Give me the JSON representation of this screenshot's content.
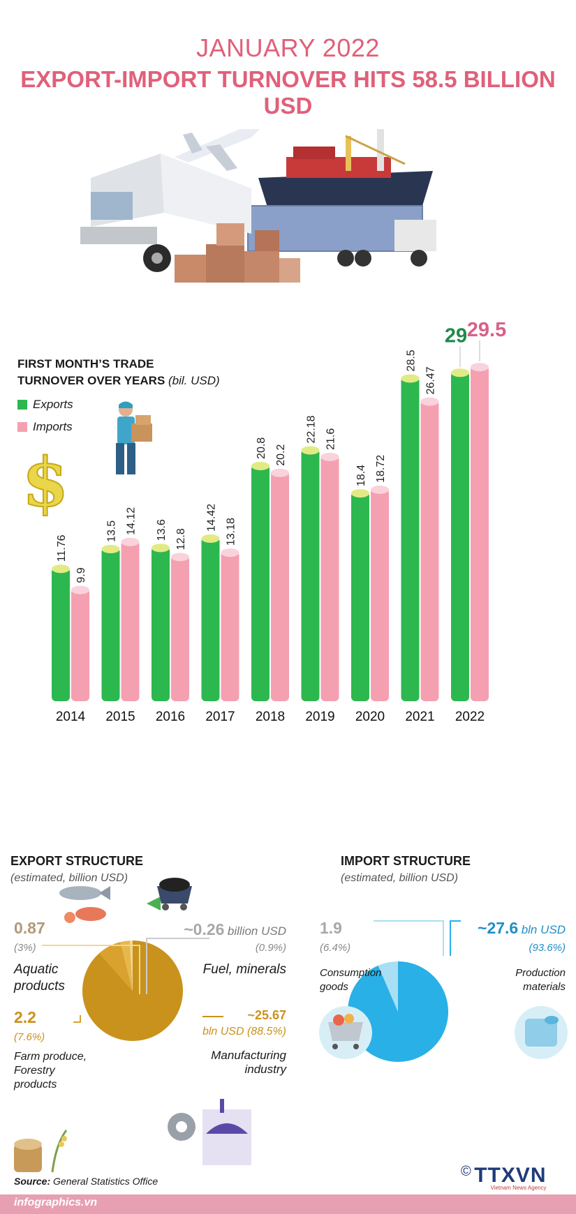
{
  "header": {
    "title_line1": "JANUARY 2022",
    "title_line2": "EXPORT-IMPORT TURNOVER HITS 58.5 BILLION USD"
  },
  "chart_section": {
    "heading_line1": "FIRST MONTH’S TRADE",
    "heading_line2": "TURNOVER OVER YEARS",
    "unit": "(bil. USD)"
  },
  "colors": {
    "exports": "#2cb84f",
    "imports": "#f4a0b1",
    "accent": "#e0607a",
    "export_pie": "#c9921c",
    "import_pie": "#29b0e6"
  },
  "chart_data": [
    {
      "type": "bar",
      "categories": [
        "2014",
        "2015",
        "2016",
        "2017",
        "2018",
        "2019",
        "2020",
        "2021",
        "2022"
      ],
      "series": [
        {
          "name": "Exports",
          "values": [
            11.76,
            13.5,
            13.6,
            14.42,
            20.8,
            22.18,
            18.4,
            28.5,
            29
          ]
        },
        {
          "name": "Imports",
          "values": [
            9.9,
            14.12,
            12.8,
            13.18,
            20.2,
            21.6,
            18.72,
            26.47,
            29.5
          ]
        }
      ],
      "value_labels": {
        "Exports": [
          "11.76",
          "13.5",
          "13.6",
          "14.42",
          "20.8",
          "22.18",
          "18.4",
          "28.5",
          "29"
        ],
        "Imports": [
          "9.9",
          "14.12",
          "12.8",
          "13.18",
          "20.2",
          "21.6",
          "18.72",
          "26.47",
          "29.5"
        ]
      },
      "ylim": [
        0,
        32
      ],
      "legend": "top-left",
      "grid": false
    },
    {
      "type": "pie",
      "title": "EXPORT STRUCTURE",
      "subtitle": "(estimated, billion USD)",
      "slices": [
        {
          "label": "Manufacturing industry",
          "value": 25.67,
          "value_text": "~25.67",
          "share_text": "bln USD (88.5%)",
          "color": "#c9921c"
        },
        {
          "label": "Farm produce, Forestry products",
          "value": 2.2,
          "value_text": "2.2",
          "share_text": "(7.6%)",
          "color": "#d9a22e"
        },
        {
          "label": "Aquatic products",
          "value": 0.87,
          "value_text": "0.87",
          "share_text": "(3%)",
          "color": "#e6b84c"
        },
        {
          "label": "Fuel, minerals",
          "value": 0.26,
          "value_text": "~0.26",
          "unit_text": "billion USD",
          "share_text": "(0.9%)",
          "color": "#f1d890"
        }
      ]
    },
    {
      "type": "pie",
      "title": "IMPORT STRUCTURE",
      "subtitle": "(estimated, billion USD)",
      "slices": [
        {
          "label": "Production materials",
          "value": 27.6,
          "value_text": "~27.6",
          "unit_text": "bln USD",
          "share_text": "(93.6%)",
          "color": "#29b0e6"
        },
        {
          "label": "Consumption goods",
          "value": 1.9,
          "value_text": "1.9",
          "share_text": "(6.4%)",
          "color": "#a9dff4"
        }
      ]
    }
  ],
  "export_labels": {
    "aquatic_line1": "Aquatic",
    "aquatic_line2": "products",
    "fuel": "Fuel, minerals",
    "farm_line1": "Farm produce,",
    "farm_line2": "Forestry",
    "farm_line3": "products",
    "manuf_line1": "Manufacturing",
    "manuf_line2": "industry"
  },
  "import_labels": {
    "consumption_line1": "Consumption",
    "consumption_line2": "goods",
    "production_line1": "Production",
    "production_line2": "materials"
  },
  "footer": {
    "source_label": "Source:",
    "source_text": "General Statistics Office",
    "site": "infographics.vn",
    "logo": "TTXVN",
    "logo_sub": "Vietnam News Agency",
    "copyright": "©"
  }
}
